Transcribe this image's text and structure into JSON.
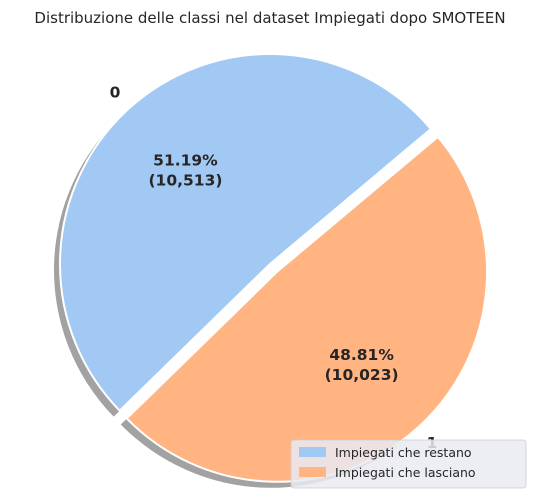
{
  "chart_data": {
    "type": "pie",
    "title": "Distribuzione delle classi nel dataset Impiegati dopo SMOTEEN",
    "categories": [
      "0",
      "1"
    ],
    "values": [
      10513,
      10023
    ],
    "labels": [
      "51.19%\n(10,513)",
      "48.81%\n(10,023)"
    ],
    "legend": [
      "Impiegati che restano",
      "Impiegati che lasciano"
    ],
    "colors": [
      "#a1c9f4",
      "#ffb482"
    ],
    "explode": [
      0,
      0.05
    ],
    "startangle": 40,
    "shadow": true,
    "legend_position": "lower-right"
  }
}
